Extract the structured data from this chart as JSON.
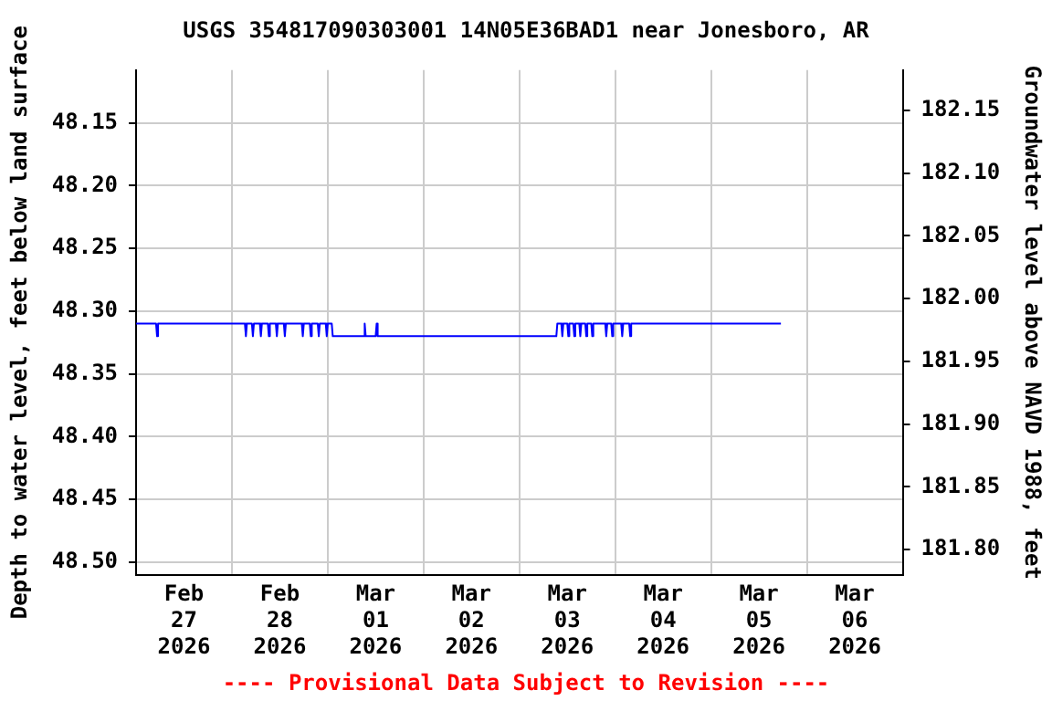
{
  "chart_data": {
    "type": "line",
    "title": "USGS 354817090303001 14N05E36BAD1 near Jonesboro, AR",
    "ylabel": "Depth to water level, feet below land surface",
    "y2label": "Groundwater level above NAVD 1988, feet",
    "annotations": [
      "---- Provisional Data Subject to Revision ----"
    ],
    "xlim": [
      "2026-02-27T00:00",
      "2026-03-07T00:00"
    ],
    "xticks": [
      {
        "value": "2026-02-27T12:00",
        "label": "Feb\n27\n2026"
      },
      {
        "value": "2026-02-28T00:00",
        "label": null
      },
      {
        "value": "2026-02-28T12:00",
        "label": "Feb\n28\n2026"
      },
      {
        "value": "2026-03-01T00:00",
        "label": null
      },
      {
        "value": "2026-03-01T12:00",
        "label": "Mar\n01\n2026"
      },
      {
        "value": "2026-03-02T00:00",
        "label": null
      },
      {
        "value": "2026-03-02T12:00",
        "label": "Mar\n02\n2026"
      },
      {
        "value": "2026-03-03T00:00",
        "label": null
      },
      {
        "value": "2026-03-03T12:00",
        "label": "Mar\n03\n2026"
      },
      {
        "value": "2026-03-04T00:00",
        "label": null
      },
      {
        "value": "2026-03-04T12:00",
        "label": "Mar\n04\n2026"
      },
      {
        "value": "2026-03-05T00:00",
        "label": null
      },
      {
        "value": "2026-03-05T12:00",
        "label": "Mar\n05\n2026"
      },
      {
        "value": "2026-03-06T00:00",
        "label": null
      },
      {
        "value": "2026-03-06T12:00",
        "label": "Mar\n06\n2026"
      }
    ],
    "ylim": [
      48.51,
      48.108
    ],
    "yticks": [
      48.15,
      {
        "value": 48.2,
        "label": "48.20"
      },
      48.25,
      {
        "value": 48.3,
        "label": "48.30"
      },
      48.35,
      {
        "value": 48.4,
        "label": "48.40"
      },
      48.45,
      {
        "value": 48.5,
        "label": "48.50"
      }
    ],
    "y2lim": [
      181.78,
      182.182
    ],
    "y2ticks": [
      {
        "value": 181.8,
        "label": "181.80"
      },
      181.85,
      {
        "value": 181.9,
        "label": "181.90"
      },
      181.95,
      {
        "value": 182,
        "label": "182.00"
      },
      182.05,
      {
        "value": 182.1,
        "label": "182.10"
      },
      182.15
    ],
    "grid": true,
    "line_style": "solid",
    "series": [
      {
        "color": "#0000ff",
        "x": [
          "2026-02-27T00:00",
          "2026-02-27T05:00",
          "2026-02-27T05:15",
          "2026-02-27T05:30",
          "2026-02-28T03:15",
          "2026-02-28T03:30",
          "2026-02-28T03:45",
          "2026-02-28T05:00",
          "2026-02-28T05:15",
          "2026-02-28T05:30",
          "2026-02-28T07:00",
          "2026-02-28T07:15",
          "2026-02-28T07:30",
          "2026-02-28T09:00",
          "2026-02-28T09:15",
          "2026-02-28T09:30",
          "2026-02-28T11:00",
          "2026-02-28T11:15",
          "2026-02-28T11:30",
          "2026-02-28T13:00",
          "2026-02-28T13:15",
          "2026-02-28T13:30",
          "2026-02-28T17:30",
          "2026-02-28T17:45",
          "2026-02-28T18:00",
          "2026-02-28T19:30",
          "2026-02-28T19:45",
          "2026-02-28T20:00",
          "2026-02-28T21:30",
          "2026-02-28T21:45",
          "2026-02-28T22:00",
          "2026-02-28T23:30",
          "2026-02-28T23:45",
          "2026-03-01T00:00",
          "2026-03-01T01:00",
          "2026-03-01T01:15",
          "2026-03-01T09:00",
          "2026-03-01T09:15",
          "2026-03-01T09:30",
          "2026-03-01T12:00",
          "2026-03-01T12:15",
          "2026-03-01T12:30",
          "2026-03-03T09:15",
          "2026-03-03T09:30",
          "2026-03-03T10:30",
          "2026-03-03T10:45",
          "2026-03-03T11:00",
          "2026-03-03T12:00",
          "2026-03-03T12:15",
          "2026-03-03T12:30",
          "2026-03-03T13:30",
          "2026-03-03T13:45",
          "2026-03-03T14:00",
          "2026-03-03T15:00",
          "2026-03-03T15:15",
          "2026-03-03T15:30",
          "2026-03-03T16:30",
          "2026-03-03T16:45",
          "2026-03-03T17:00",
          "2026-03-03T18:00",
          "2026-03-03T18:15",
          "2026-03-03T18:30",
          "2026-03-03T21:30",
          "2026-03-03T21:45",
          "2026-03-03T22:00",
          "2026-03-03T23:00",
          "2026-03-03T23:15",
          "2026-03-03T23:30",
          "2026-03-04T01:30",
          "2026-03-04T01:45",
          "2026-03-04T02:00",
          "2026-03-04T03:30",
          "2026-03-04T03:45",
          "2026-03-04T04:00",
          "2026-03-05T17:30"
        ],
        "values": [
          48.31,
          48.31,
          48.32,
          48.31,
          48.31,
          48.32,
          48.31,
          48.31,
          48.32,
          48.31,
          48.31,
          48.32,
          48.31,
          48.31,
          48.32,
          48.31,
          48.31,
          48.32,
          48.31,
          48.31,
          48.32,
          48.31,
          48.31,
          48.32,
          48.31,
          48.31,
          48.32,
          48.31,
          48.31,
          48.32,
          48.31,
          48.31,
          48.32,
          48.31,
          48.31,
          48.32,
          48.32,
          48.31,
          48.32,
          48.32,
          48.31,
          48.32,
          48.32,
          48.31,
          48.31,
          48.32,
          48.31,
          48.31,
          48.32,
          48.31,
          48.31,
          48.32,
          48.31,
          48.31,
          48.32,
          48.31,
          48.31,
          48.32,
          48.31,
          48.31,
          48.32,
          48.31,
          48.31,
          48.32,
          48.31,
          48.31,
          48.32,
          48.31,
          48.31,
          48.32,
          48.31,
          48.31,
          48.32,
          48.31,
          48.31
        ]
      }
    ]
  }
}
